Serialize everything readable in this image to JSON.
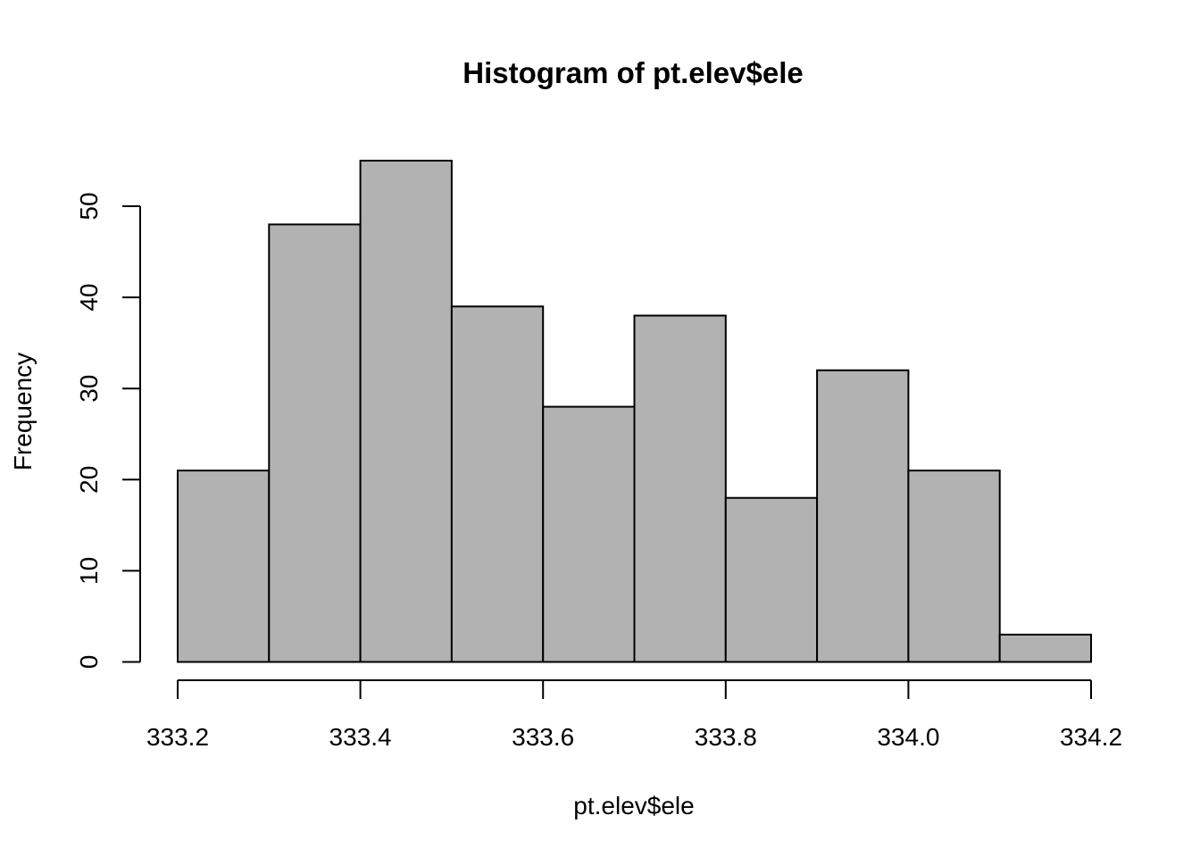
{
  "chart_data": {
    "type": "bar",
    "title": "Histogram of pt.elev$ele",
    "xlabel": "pt.elev$ele",
    "ylabel": "Frequency",
    "bin_edges": [
      333.2,
      333.3,
      333.4,
      333.5,
      333.6,
      333.7,
      333.8,
      333.9,
      334.0,
      334.1,
      334.2
    ],
    "values": [
      21,
      48,
      55,
      39,
      28,
      38,
      18,
      32,
      21,
      3
    ],
    "xlim": [
      333.2,
      334.2
    ],
    "ylim": [
      0,
      55
    ],
    "x_ticks": [
      333.2,
      333.4,
      333.6,
      333.8,
      334.0,
      334.2
    ],
    "x_tick_labels": [
      "333.2",
      "333.4",
      "333.6",
      "333.8",
      "334.0",
      "334.2"
    ],
    "y_ticks": [
      0,
      10,
      20,
      30,
      40,
      50
    ],
    "y_tick_labels": [
      "0",
      "10",
      "20",
      "30",
      "40",
      "50"
    ],
    "grid": false,
    "colors": {
      "bar_fill": "#b2b2b2",
      "bar_stroke": "#000000"
    }
  }
}
